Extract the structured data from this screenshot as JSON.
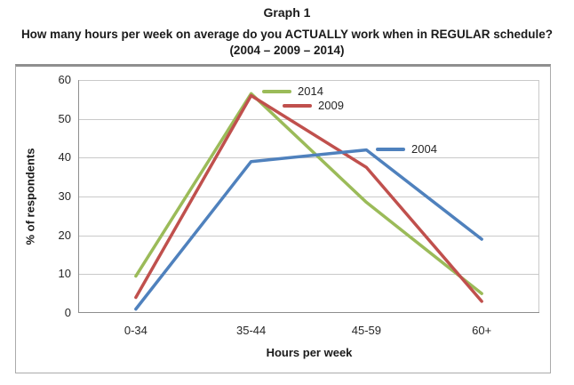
{
  "header": {
    "title": "Graph 1",
    "subtitle_line1": "How many hours per week on average do you ACTUALLY work when in REGULAR schedule?",
    "subtitle_line2": "(2004 – 2009 – 2014)"
  },
  "chart_data": {
    "type": "line",
    "categories": [
      "0-34",
      "35-44",
      "45-59",
      "60+"
    ],
    "series": [
      {
        "name": "2014",
        "color": "#9BBB59",
        "values": [
          9.5,
          56.5,
          28.5,
          5
        ]
      },
      {
        "name": "2009",
        "color": "#C0504D",
        "values": [
          4,
          56,
          37.5,
          3
        ]
      },
      {
        "name": "2004",
        "color": "#4F81BD",
        "values": [
          1,
          39,
          42,
          19
        ]
      }
    ],
    "title": "How many hours per week on average do you ACTUALLY work when in REGULAR schedule? (2004 – 2009 – 2014)",
    "xlabel": "Hours per week",
    "ylabel": "% of respondents",
    "ylim": [
      0,
      60
    ],
    "yticks": [
      0,
      10,
      20,
      30,
      40,
      50,
      60
    ],
    "grid": "horizontal",
    "legend_position": "inside-plot",
    "colors": {
      "gridline": "#C9C9C9",
      "axis": "#8E8E8E",
      "plot_border": "#C9C9C9"
    }
  }
}
